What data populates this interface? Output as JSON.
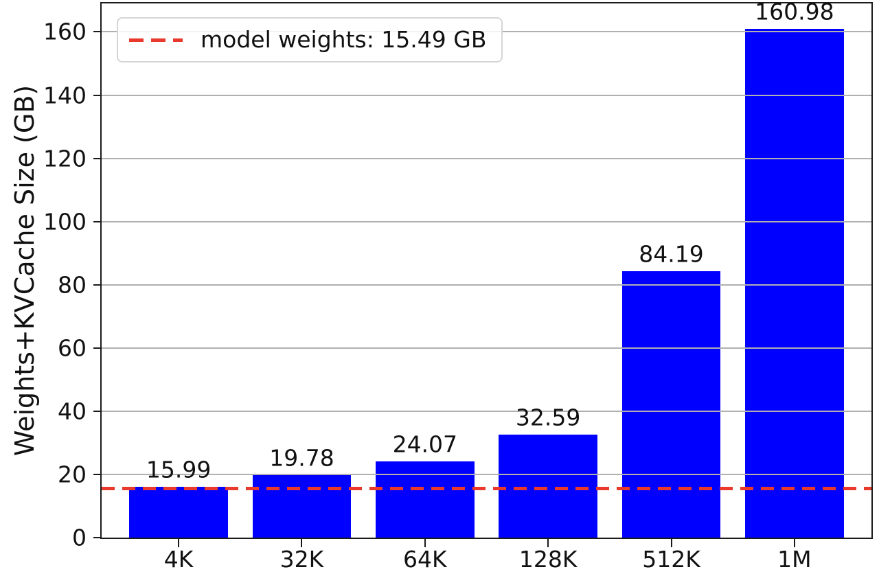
{
  "chart_data": {
    "type": "bar",
    "title": "",
    "xlabel": "",
    "ylabel": "Weights+KVCache Size (GB)",
    "categories": [
      "4K",
      "32K",
      "64K",
      "128K",
      "512K",
      "1M"
    ],
    "values": [
      15.99,
      19.78,
      24.07,
      32.59,
      84.19,
      160.98
    ],
    "value_labels": [
      "15.99",
      "19.78",
      "24.07",
      "32.59",
      "84.19",
      "160.98"
    ],
    "ylim": [
      0,
      169.0
    ],
    "yticks": [
      0,
      20,
      40,
      60,
      80,
      100,
      120,
      140,
      160
    ],
    "grid": true,
    "grid_color": "#b0b0b0",
    "bar_color": "#0000ff",
    "text_color": "#111111",
    "spine_color": "#1a1a1a",
    "threshold": {
      "value": 15.49,
      "label": "model weights: 15.49 GB",
      "color": "#e8392c",
      "style": "dashed"
    },
    "legend_position": "upper left"
  }
}
